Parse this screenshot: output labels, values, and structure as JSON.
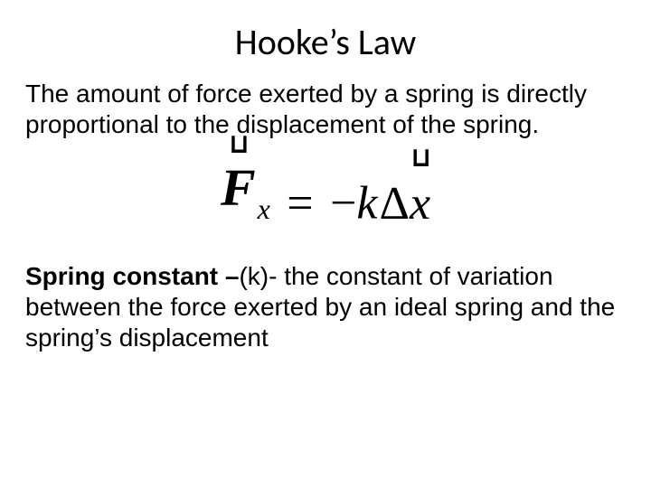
{
  "colors": {
    "background": "#ffffff",
    "text": "#000000"
  },
  "typography": {
    "title_font": "Calibri",
    "body_font": "Arial",
    "math_font": "Times New Roman",
    "title_fontsize": 40,
    "body_fontsize": 28,
    "math_fontsize_main": 58,
    "math_fontsize_op": 52,
    "math_fontsize_sub": 32
  },
  "title": "Hooke’s Law",
  "intro": "The amount of force exerted by a spring is directly proportional to the displacement of the spring.",
  "equation": {
    "lhs": {
      "symbol": "F",
      "vector": true,
      "subscript": "x"
    },
    "op": "=",
    "rhs_prefix": "−",
    "rhs_k": "k",
    "rhs_delta": "Δ",
    "rhs_var": {
      "symbol": "x",
      "vector": true
    }
  },
  "definition": {
    "term_bold": "Spring constant –",
    "term_plain": "(k)- the constant of variation between the force exerted by an ideal spring and the spring’s displacement"
  }
}
